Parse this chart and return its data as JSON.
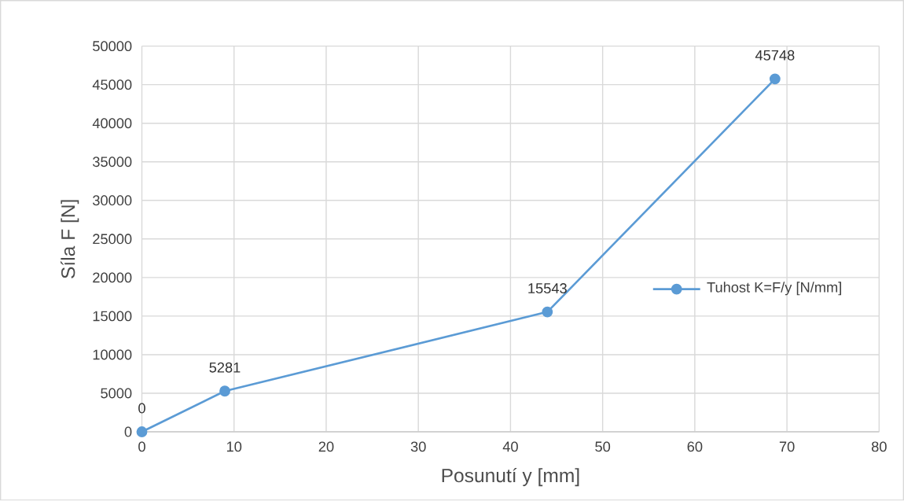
{
  "chart_data": {
    "type": "line",
    "xlabel": "Posunutí y [mm]",
    "ylabel": "Síla F [N]",
    "x": [
      0,
      9,
      44,
      68.7
    ],
    "series": [
      {
        "name": "Tuhost K=F/y [N/mm]",
        "color": "#5b9bd5",
        "values": [
          0,
          5281,
          15543,
          45748
        ]
      }
    ],
    "xlim": [
      0,
      80
    ],
    "xticks": [
      0,
      10,
      20,
      30,
      40,
      50,
      60,
      70,
      80
    ],
    "ylim": [
      0,
      50000
    ],
    "yticks": [
      0,
      5000,
      10000,
      15000,
      20000,
      25000,
      30000,
      35000,
      40000,
      45000,
      50000
    ],
    "grid": true,
    "legend": "right",
    "marker": "circle",
    "line_style": "solid",
    "data_labels": true
  }
}
